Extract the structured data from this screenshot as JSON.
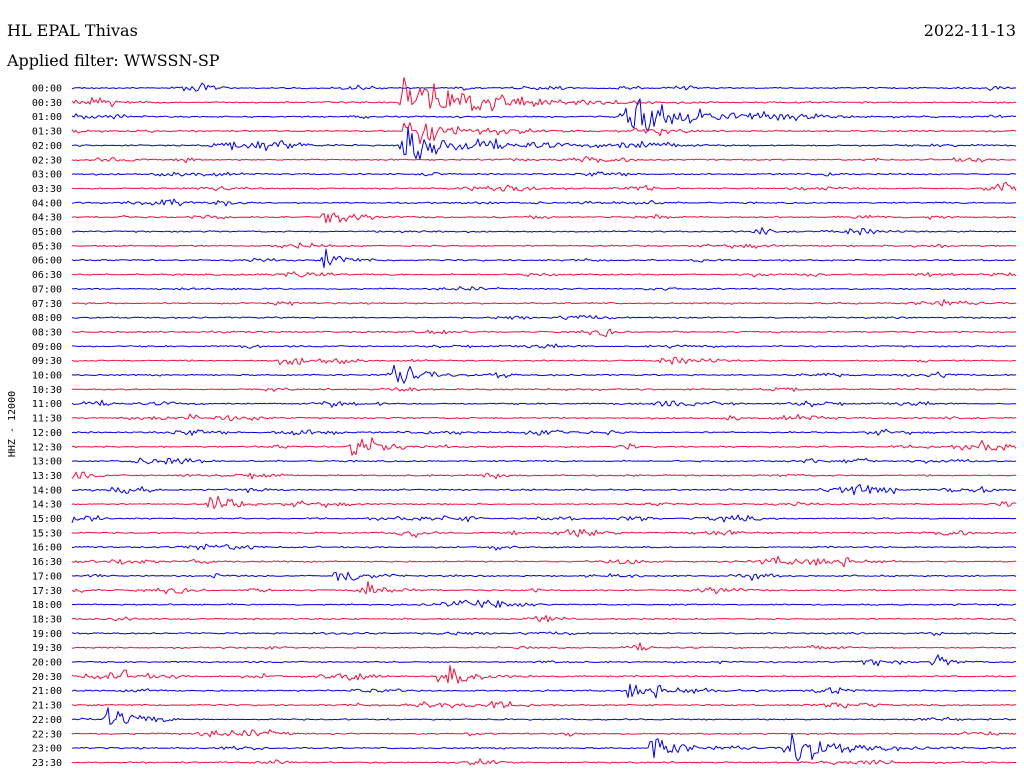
{
  "header": {
    "station": "HL EPAL Thivas",
    "date": "2022-11-13",
    "filter": "Applied filter: WWSSN-SP",
    "channel": "HHZ - 12000"
  },
  "chart_data": {
    "type": "line",
    "title": "HL EPAL Thivas",
    "subtitle": "Applied filter: WWSSN-SP",
    "ylabel": "HHZ - 12000",
    "xlabel": "",
    "trace_colors": [
      "#0000e0",
      "#f0103c"
    ],
    "grid": false,
    "legend": "none",
    "rows": [
      "00:00",
      "00:30",
      "01:00",
      "01:30",
      "02:00",
      "02:30",
      "03:00",
      "03:30",
      "04:00",
      "04:30",
      "05:00",
      "05:30",
      "06:00",
      "06:30",
      "07:00",
      "07:30",
      "08:00",
      "08:30",
      "09:00",
      "09:30",
      "10:00",
      "10:30",
      "11:00",
      "11:30",
      "12:00",
      "12:30",
      "13:00",
      "13:30",
      "14:00",
      "14:30",
      "15:00",
      "15:30",
      "16:00",
      "16:30",
      "17:00",
      "17:30",
      "18:00",
      "18:30",
      "19:00",
      "19:30",
      "20:00",
      "20:30",
      "21:00",
      "21:30",
      "22:00",
      "22:30",
      "23:00",
      "23:30"
    ],
    "events": [
      {
        "row": "00:30",
        "minute": 10.6,
        "amplitude": 1.0,
        "duration_min": 3.0
      },
      {
        "row": "01:00",
        "minute": 17.6,
        "amplitude": 1.0,
        "duration_min": 2.5
      },
      {
        "row": "01:30",
        "minute": 10.6,
        "amplitude": 0.6,
        "duration_min": 2.5
      },
      {
        "row": "02:00",
        "minute": 10.6,
        "amplitude": 0.7,
        "duration_min": 3.0
      },
      {
        "row": "04:30",
        "minute": 8.1,
        "amplitude": 0.4,
        "duration_min": 1.0
      },
      {
        "row": "06:00",
        "minute": 8.1,
        "amplitude": 0.4,
        "duration_min": 0.8
      },
      {
        "row": "10:00",
        "minute": 10.3,
        "amplitude": 0.4,
        "duration_min": 1.0
      },
      {
        "row": "12:30",
        "minute": 9.0,
        "amplitude": 0.5,
        "duration_min": 1.0
      },
      {
        "row": "14:30",
        "minute": 4.5,
        "amplitude": 0.5,
        "duration_min": 0.8
      },
      {
        "row": "17:00",
        "minute": 8.5,
        "amplitude": 0.5,
        "duration_min": 0.8
      },
      {
        "row": "17:30",
        "minute": 9.3,
        "amplitude": 0.5,
        "duration_min": 0.8
      },
      {
        "row": "20:00",
        "minute": 27.5,
        "amplitude": 0.3,
        "duration_min": 0.5
      },
      {
        "row": "20:30",
        "minute": 11.8,
        "amplitude": 0.5,
        "duration_min": 1.5
      },
      {
        "row": "21:00",
        "minute": 17.8,
        "amplitude": 0.4,
        "duration_min": 2.0
      },
      {
        "row": "22:00",
        "minute": 1.2,
        "amplitude": 0.4,
        "duration_min": 0.8
      },
      {
        "row": "23:00",
        "minute": 22.8,
        "amplitude": 0.7,
        "duration_min": 2.0
      },
      {
        "row": "23:00",
        "minute": 18.5,
        "amplitude": 0.6,
        "duration_min": 1.0
      }
    ]
  }
}
